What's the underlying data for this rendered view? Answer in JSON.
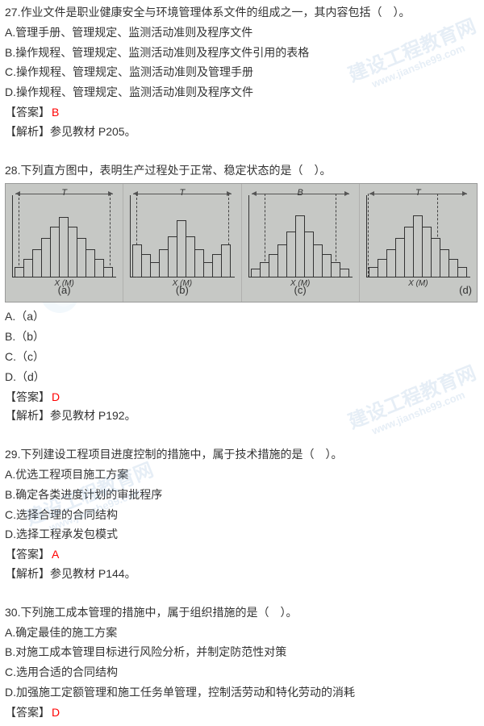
{
  "q27": {
    "text": "27.作业文件是职业健康安全与环境管理体系文件的组成之一，其内容包括（　）。",
    "A": "A.管理手册、管理规定、监测活动准则及程序文件",
    "B": "B.操作规程、管理规定、监测活动准则及程序文件引用的表格",
    "C": "C.操作规程、管理规定、监测活动准则及管理手册",
    "D": "D.操作规程、管理规定、监测活动准则及程序文件",
    "ans_label": "【答案】",
    "ans_val": "B",
    "exp": "【解析】参见教材 P205。"
  },
  "q28": {
    "text": "28.下列直方图中，表明生产过程处于正常、稳定状态的是（　）。",
    "panels": {
      "a": {
        "t": "T",
        "x": "X (M)",
        "label": "(a)",
        "bars": [
          12,
          22,
          34,
          48,
          62,
          74,
          62,
          48,
          34,
          22,
          12
        ],
        "dashL": 6,
        "dashR": 94
      },
      "b": {
        "t": "T",
        "x": "X (M)",
        "label": "(b)",
        "bars": [
          40,
          28,
          18,
          34,
          50,
          70,
          50,
          34,
          18,
          28,
          40
        ],
        "dashL": 6,
        "dashR": 94
      },
      "c": {
        "t": "B",
        "x": "X (M)",
        "label": "(c)",
        "bars": [
          10,
          18,
          28,
          40,
          56,
          76,
          56,
          40,
          28,
          18,
          10
        ],
        "dashL": 16,
        "dashR": 84
      },
      "d": {
        "t": "T",
        "x": "X (M)",
        "label": "(d)",
        "bars": [
          12,
          22,
          34,
          48,
          62,
          76,
          62,
          48,
          34,
          22,
          12
        ],
        "dashL": 2,
        "dashR": 68
      }
    },
    "A": "A.（a）",
    "B": "B.（b）",
    "C": "C.（c）",
    "D": "D.（d）",
    "ans_label": "【答案】",
    "ans_val": "D",
    "exp": "【解析】参见教材 P192。"
  },
  "q29": {
    "text": "29.下列建设工程项目进度控制的措施中，属于技术措施的是（　）。",
    "A": "A.优选工程项目施工方案",
    "B": "B.确定各类进度计划的审批程序",
    "C": "C.选择合理的合同结构",
    "D": "D.选择工程承发包模式",
    "ans_label": "【答案】",
    "ans_val": "A",
    "exp": "【解析】参见教材 P144。"
  },
  "q30": {
    "text": "30.下列施工成本管理的措施中，属于组织措施的是（　）。",
    "A": "A.确定最佳的施工方案",
    "B": "B.对施工成本管理目标进行风险分析，并制定防范性对策",
    "C": "C.选用合适的合同结构",
    "D": "D.加强施工定额管理和施工任务单管理，控制活劳动和特化劳动的消耗",
    "ans_label": "【答案】",
    "ans_val": "D"
  },
  "watermark": {
    "main": "建设工程教育网",
    "sub": "www.jianshe99.com"
  }
}
